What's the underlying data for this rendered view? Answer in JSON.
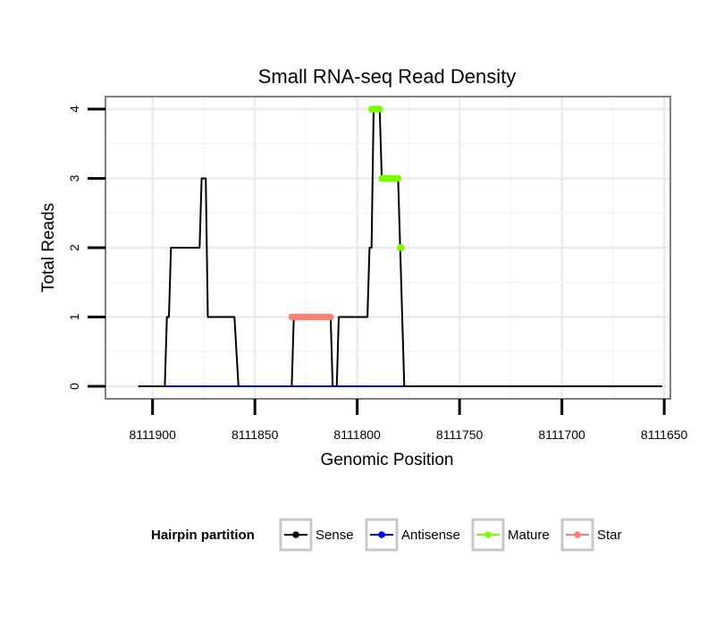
{
  "chart_data": {
    "type": "line",
    "title": "Small RNA-seq Read Density",
    "xlabel": "Genomic Position",
    "ylabel": "Total Reads",
    "x_reversed": true,
    "xlim": [
      8111923,
      8111647
    ],
    "ylim": [
      -0.18,
      4.18
    ],
    "x_ticks": [
      8111900,
      8111850,
      8111800,
      8111750,
      8111700,
      8111650
    ],
    "x_tick_labels": [
      "8111900",
      "8111850",
      "8111800",
      "8111750",
      "8111700",
      "8111650"
    ],
    "y_ticks": [
      0,
      1,
      2,
      3,
      4
    ],
    "y_tick_labels": [
      "0",
      "1",
      "2",
      "3",
      "4"
    ],
    "grid": true,
    "legend": {
      "title": "Hairpin partition",
      "position": "bottom",
      "entries": [
        {
          "name": "Sense",
          "color": "#000000"
        },
        {
          "name": "Antisense",
          "color": "#0000ff"
        },
        {
          "name": "Mature",
          "color": "#7cfc00"
        },
        {
          "name": "Star",
          "color": "#fa8072"
        }
      ]
    },
    "series": [
      {
        "name": "Sense",
        "style": "line",
        "color": "#000000",
        "points": [
          [
            8111907,
            0
          ],
          [
            8111894,
            0
          ],
          [
            8111893,
            1
          ],
          [
            8111892,
            1
          ],
          [
            8111891,
            2
          ],
          [
            8111877,
            2
          ],
          [
            8111876,
            3
          ],
          [
            8111874,
            3
          ],
          [
            8111873,
            1
          ],
          [
            8111860,
            1
          ],
          [
            8111858,
            0
          ],
          [
            8111832,
            0
          ],
          [
            8111831,
            1
          ],
          [
            8111813,
            1
          ],
          [
            8111812,
            0
          ],
          [
            8111810,
            0
          ],
          [
            8111809,
            1
          ],
          [
            8111795,
            1
          ],
          [
            8111794,
            2
          ],
          [
            8111793,
            2
          ],
          [
            8111792,
            4
          ],
          [
            8111789,
            4
          ],
          [
            8111788,
            3
          ],
          [
            8111780,
            3
          ],
          [
            8111779,
            2
          ],
          [
            8111777,
            0
          ],
          [
            8111651,
            0
          ]
        ]
      },
      {
        "name": "Antisense",
        "style": "line",
        "color": "#0000ff",
        "points": [
          [
            8111894,
            0
          ],
          [
            8111777,
            0
          ]
        ]
      },
      {
        "name": "Mature",
        "style": "points",
        "color": "#7cfc00",
        "points": [
          [
            8111793,
            4
          ],
          [
            8111792.5,
            4
          ],
          [
            8111792,
            4
          ],
          [
            8111791.5,
            4
          ],
          [
            8111791,
            4
          ],
          [
            8111790.5,
            4
          ],
          [
            8111790,
            4
          ],
          [
            8111789.5,
            4
          ],
          [
            8111789,
            4
          ],
          [
            8111788,
            3
          ],
          [
            8111787.5,
            3
          ],
          [
            8111787,
            3
          ],
          [
            8111786.5,
            3
          ],
          [
            8111786,
            3
          ],
          [
            8111785.5,
            3
          ],
          [
            8111785,
            3
          ],
          [
            8111784.5,
            3
          ],
          [
            8111784,
            3
          ],
          [
            8111783.5,
            3
          ],
          [
            8111783,
            3
          ],
          [
            8111782.5,
            3
          ],
          [
            8111782,
            3
          ],
          [
            8111781.5,
            3
          ],
          [
            8111781,
            3
          ],
          [
            8111780.5,
            3
          ],
          [
            8111780,
            3
          ],
          [
            8111779,
            2
          ],
          [
            8111778.5,
            2
          ]
        ]
      },
      {
        "name": "Star",
        "style": "points",
        "color": "#fa8072",
        "points": [
          [
            8111832,
            1
          ],
          [
            8111831,
            1
          ],
          [
            8111830,
            1
          ],
          [
            8111829,
            1
          ],
          [
            8111828,
            1
          ],
          [
            8111827,
            1
          ],
          [
            8111826,
            1
          ],
          [
            8111825,
            1
          ],
          [
            8111824,
            1
          ],
          [
            8111823,
            1
          ],
          [
            8111822,
            1
          ],
          [
            8111821,
            1
          ],
          [
            8111820,
            1
          ],
          [
            8111819,
            1
          ],
          [
            8111818,
            1
          ],
          [
            8111817,
            1
          ],
          [
            8111816,
            1
          ],
          [
            8111815,
            1
          ],
          [
            8111814,
            1
          ],
          [
            8111813,
            1
          ]
        ]
      }
    ]
  }
}
